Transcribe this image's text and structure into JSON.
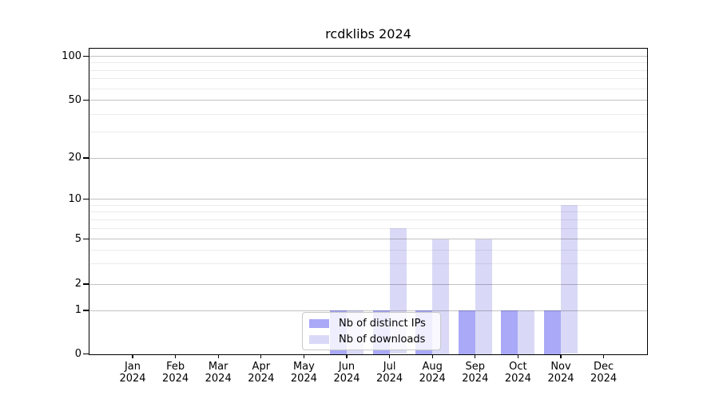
{
  "chart_data": {
    "type": "bar",
    "title": "rcdklibs 2024",
    "categories": [
      "Jan",
      "Feb",
      "Mar",
      "Apr",
      "May",
      "Jun",
      "Jul",
      "Aug",
      "Sep",
      "Oct",
      "Nov",
      "Dec"
    ],
    "year": "2024",
    "series": [
      {
        "name": "Nb of distinct IPs",
        "color": "#a9a9f7",
        "values": [
          0,
          0,
          0,
          0,
          0,
          1,
          1,
          1,
          1,
          1,
          1,
          0
        ]
      },
      {
        "name": "Nb of downloads",
        "color": "#d9d9f7",
        "values": [
          0,
          0,
          0,
          0,
          0,
          1,
          6,
          5,
          5,
          1,
          9,
          0
        ]
      }
    ],
    "y_ticks": [
      0,
      1,
      2,
      5,
      10,
      20,
      50,
      100
    ],
    "y_minor_ticks": [
      3,
      4,
      6,
      7,
      8,
      9,
      30,
      40,
      60,
      70,
      80,
      90
    ],
    "yscale": "symlog",
    "ylim": [
      0,
      110
    ],
    "xlabel": "",
    "ylabel": "",
    "grid": true,
    "legend_position": "lower center"
  }
}
